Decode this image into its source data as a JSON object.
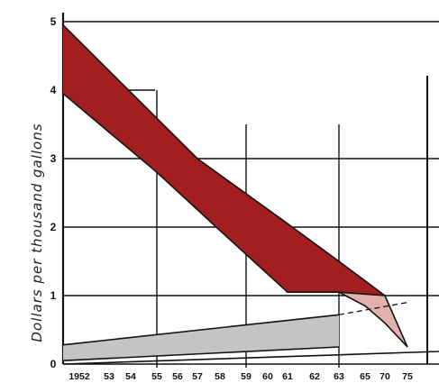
{
  "chart_data": {
    "type": "area",
    "ylabel": "Dollars per thousand gallons",
    "ylim": [
      0,
      5
    ],
    "yticks": [
      "0",
      "1",
      "2",
      "3",
      "4",
      "5"
    ],
    "x_tick_labels": [
      "1952",
      "53",
      "54",
      "55",
      "56",
      "57",
      "58",
      "59",
      "60",
      "61",
      "62",
      "63",
      "65",
      "70",
      "75"
    ],
    "major_gridline_years": [
      "55",
      "59",
      "63"
    ],
    "grid": true,
    "colors": {
      "upper_band": "#a31e1e",
      "upper_band_projection": "#e3b1ac",
      "lower_band": "#c4c4c4",
      "gridline": "#111111"
    },
    "series": [
      {
        "role": "upper-band-top",
        "x": [
          "1952",
          "57",
          "61",
          "63",
          "70"
        ],
        "values": [
          4.95,
          3.0,
          2.05,
          1.5,
          1.0
        ]
      },
      {
        "role": "upper-band-bottom",
        "x": [
          "1952",
          "55",
          "58",
          "61",
          "63"
        ],
        "values": [
          3.95,
          2.8,
          1.95,
          1.05,
          1.05
        ]
      },
      {
        "role": "upper-band-projection-top",
        "x": [
          "63",
          "70",
          "75"
        ],
        "values": [
          1.05,
          1.0,
          0.25
        ]
      },
      {
        "role": "upper-band-projection-bottom",
        "x": [
          "63",
          "65",
          "70",
          "75"
        ],
        "values": [
          1.05,
          0.85,
          0.6,
          0.25
        ]
      },
      {
        "role": "lower-band-top",
        "x": [
          "1952",
          "63"
        ],
        "values": [
          0.28,
          0.72
        ]
      },
      {
        "role": "lower-band-bottom",
        "x": [
          "1952",
          "63"
        ],
        "values": [
          0.05,
          0.25
        ]
      },
      {
        "role": "lower-band-projection-dashed",
        "x": [
          "63",
          "75"
        ],
        "values": [
          0.72,
          0.9
        ]
      }
    ]
  }
}
